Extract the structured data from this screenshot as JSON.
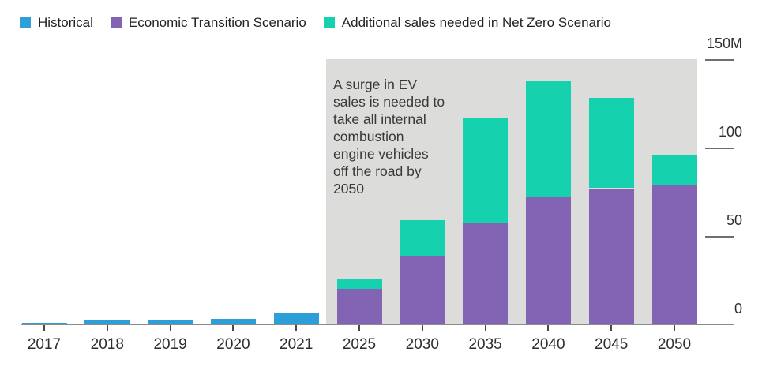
{
  "legend": {
    "items": [
      {
        "label": "Historical",
        "color": "#2d9fd8"
      },
      {
        "label": "Economic Transition Scenario",
        "color": "#8363b4"
      },
      {
        "label": "Additional sales needed in Net Zero Scenario",
        "color": "#16d1ae"
      }
    ]
  },
  "annotation": {
    "text": "A surge in EV\nsales is needed to\ntake all internal\ncombustion\nengine vehicles\noff the road by\n2050"
  },
  "colors": {
    "historical": "#2d9fd8",
    "economic_transition": "#8363b4",
    "net_zero_additional": "#16d1ae",
    "highlight_region": "#dcdcda",
    "axis": "#8c8c8c"
  },
  "chart_data": {
    "type": "bar",
    "stacked": true,
    "title": "",
    "xlabel": "",
    "ylabel": "",
    "unit": "million vehicles",
    "grid": false,
    "legend_position": "top",
    "ylim": [
      0,
      150
    ],
    "categories": [
      "2017",
      "2018",
      "2019",
      "2020",
      "2021",
      "2025",
      "2030",
      "2035",
      "2040",
      "2045",
      "2050"
    ],
    "series": [
      {
        "name": "Historical",
        "color": "#2d9fd8",
        "values": [
          1.1,
          2.1,
          2.2,
          3.2,
          6.6,
          0,
          0,
          0,
          0,
          0,
          0
        ]
      },
      {
        "name": "Economic Transition Scenario",
        "color": "#8363b4",
        "values": [
          0,
          0,
          0,
          0,
          0,
          20,
          39,
          57,
          72,
          77,
          79
        ]
      },
      {
        "name": "Additional sales needed in Net Zero Scenario",
        "color": "#16d1ae",
        "values": [
          0,
          0,
          0,
          0,
          0,
          6,
          20,
          60,
          66,
          51,
          17
        ]
      }
    ],
    "yticks": [
      {
        "value": 0,
        "label": "0"
      },
      {
        "value": 50,
        "label": "50"
      },
      {
        "value": 100,
        "label": "100"
      },
      {
        "value": 150,
        "label": "150M"
      }
    ],
    "highlight_region": {
      "from_category": "2025",
      "to_category": "2050"
    }
  }
}
